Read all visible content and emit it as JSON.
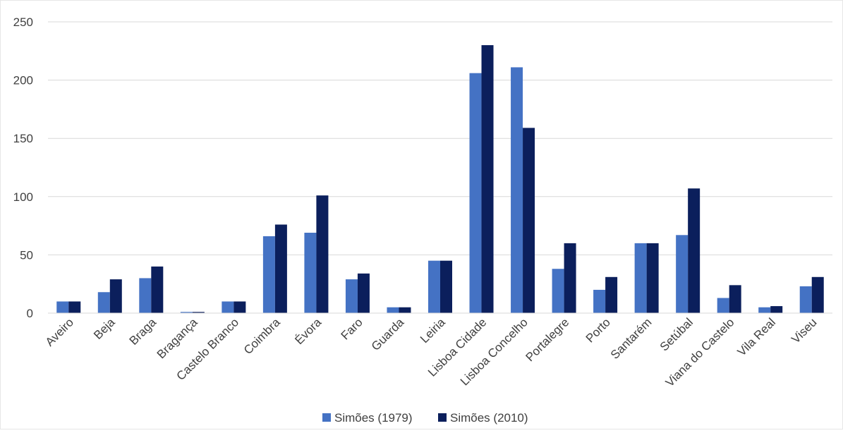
{
  "chart_data": {
    "type": "bar",
    "title": "",
    "xlabel": "",
    "ylabel": "",
    "ylim": [
      0,
      250
    ],
    "yticks": [
      0,
      50,
      100,
      150,
      200,
      250
    ],
    "grid": true,
    "legend_position": "bottom",
    "categories": [
      "Aveiro",
      "Beja",
      "Braga",
      "Bragança",
      "Castelo Branco",
      "Coimbra",
      "Évora",
      "Faro",
      "Guarda",
      "Leiria",
      "Lisboa Cidade",
      "Lisboa Concelho",
      "Portalegre",
      "Porto",
      "Santarém",
      "Setúbal",
      "Viana do Castelo",
      "Vila Real",
      "Viseu"
    ],
    "series": [
      {
        "name": "Simões (1979)",
        "color": "#4472c4",
        "values": [
          10,
          18,
          30,
          1,
          10,
          66,
          69,
          29,
          5,
          45,
          206,
          211,
          38,
          20,
          60,
          67,
          13,
          5,
          23
        ]
      },
      {
        "name": "Simões (2010)",
        "color": "#0b1f5c",
        "values": [
          10,
          29,
          40,
          1,
          10,
          76,
          101,
          34,
          5,
          45,
          230,
          159,
          60,
          31,
          60,
          107,
          24,
          6,
          31
        ]
      }
    ]
  }
}
